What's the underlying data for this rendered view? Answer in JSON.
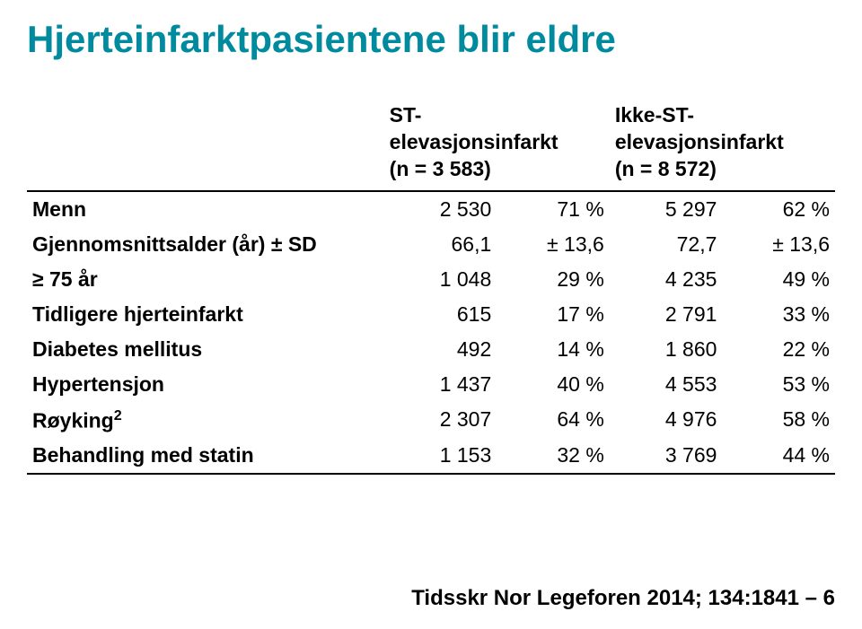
{
  "title": {
    "text": "Hjerteinfarktpasientene blir eldre",
    "color": "#008a9e"
  },
  "table": {
    "headers": {
      "col1_line1": "ST-",
      "col1_line2": "elevasjonsinfarkt",
      "col1_line3": "(n = 3 583)",
      "col2_line1": "Ikke-ST-",
      "col2_line2": "elevasjonsinfarkt",
      "col2_line3": "(n = 8 572)"
    },
    "rows": [
      {
        "label": "Menn",
        "v1": "2 530",
        "p1": "71 %",
        "v2": "5 297",
        "p2": "62 %"
      },
      {
        "label": "Gjennomsnittsalder (år) ± SD",
        "v1": "66,1",
        "p1": "± 13,6",
        "v2": "72,7",
        "p2": "± 13,6"
      },
      {
        "label": "≥ 75 år",
        "v1": "1 048",
        "p1": "29 %",
        "v2": "4 235",
        "p2": "49 %"
      },
      {
        "label": "Tidligere hjerteinfarkt",
        "v1": "615",
        "p1": "17 %",
        "v2": "2 791",
        "p2": "33 %"
      },
      {
        "label": "Diabetes mellitus",
        "v1": "492",
        "p1": "14 %",
        "v2": "1 860",
        "p2": "22 %"
      },
      {
        "label": "Hypertensjon",
        "v1": "1 437",
        "p1": "40 %",
        "v2": "4 553",
        "p2": "53 %"
      },
      {
        "label_html": "Røyking<sup>2</sup>",
        "label": "Røyking2",
        "v1": "2 307",
        "p1": "64 %",
        "v2": "4 976",
        "p2": "58 %"
      },
      {
        "label": "Behandling med statin",
        "v1": "1 153",
        "p1": "32 %",
        "v2": "3 769",
        "p2": "44 %"
      }
    ]
  },
  "citation": "Tidsskr Nor Legeforen 2014; 134:1841 – 6"
}
